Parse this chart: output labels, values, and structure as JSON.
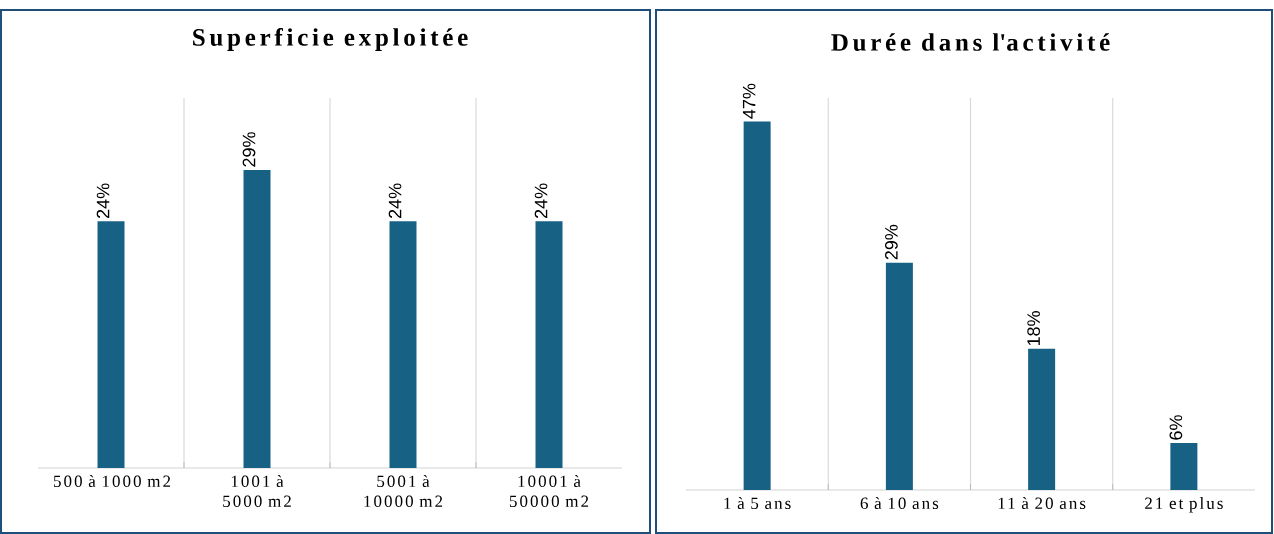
{
  "chart_data": [
    {
      "type": "bar",
      "title": "Superficie exploitée",
      "categories": [
        "500 à 1000 m2",
        "1001 à 5000 m2",
        "5001 à 10000 m2",
        "10001 à 50000 m2"
      ],
      "values": [
        24,
        29,
        24,
        24
      ],
      "value_labels": [
        "24%",
        "29%",
        "24%",
        "24%"
      ],
      "color": "#176185",
      "ylim": [
        0,
        36
      ],
      "grid": "x",
      "tick_labels": "x"
    },
    {
      "type": "bar",
      "title": "Durée dans l'activité",
      "categories": [
        "1 à 5 ans",
        "6 à 10 ans",
        "11 à 20 ans",
        "21 et plus"
      ],
      "values": [
        47,
        29,
        18,
        6
      ],
      "value_labels": [
        "47%",
        "29%",
        "18%",
        "6%"
      ],
      "color": "#176185",
      "ylim": [
        0,
        50
      ],
      "grid": "x",
      "tick_labels": "x"
    }
  ]
}
